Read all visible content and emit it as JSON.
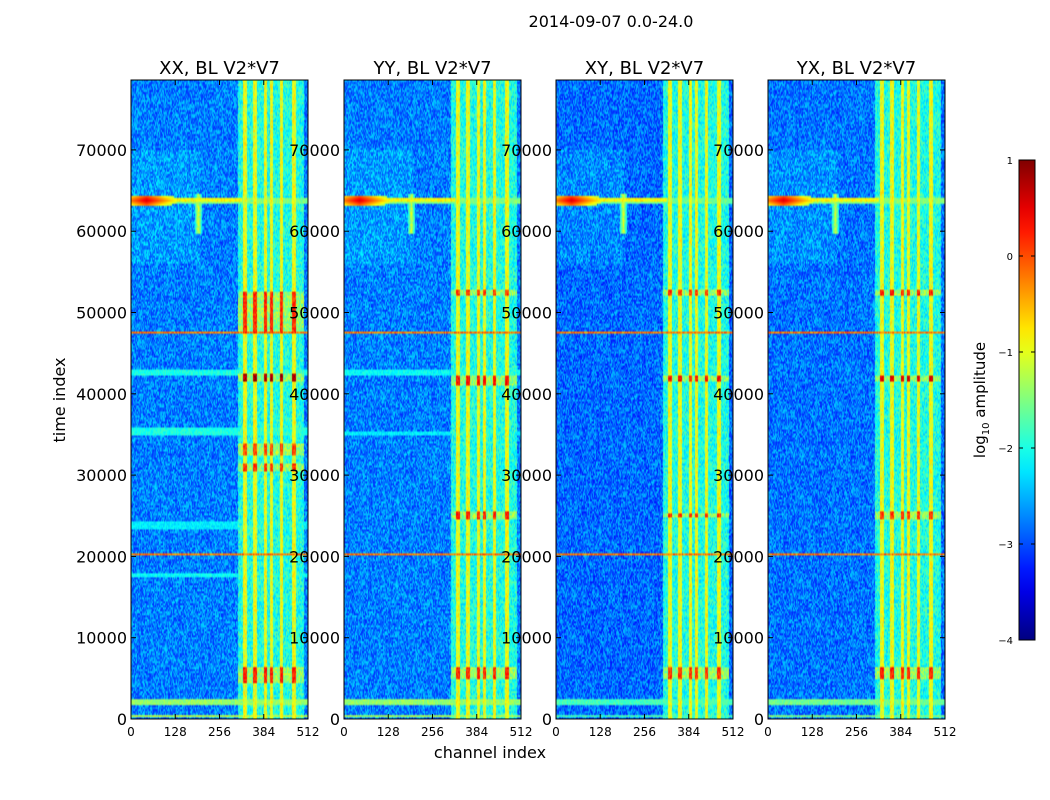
{
  "figure_title": "2014-09-07 0.0-24.0",
  "chart_data": {
    "type": "heatmap",
    "suptitle": "2014-09-07 0.0-24.0",
    "xlabel": "channel index",
    "ylabel": "time index",
    "xlim": [
      0,
      512
    ],
    "ylim": [
      0,
      78600
    ],
    "xticks": [
      0,
      128,
      256,
      384,
      512
    ],
    "yticks": [
      0,
      10000,
      20000,
      30000,
      40000,
      50000,
      60000,
      70000
    ],
    "colormap": "jet",
    "colorbar": {
      "label_prefix": "log",
      "label_sub": "10",
      "label_suffix": " amplitude",
      "range": [
        -4,
        1
      ],
      "ticks": [
        1,
        0,
        -1,
        -2,
        -3,
        -4
      ],
      "tick_labels": [
        "1",
        "0",
        "−1",
        "−2",
        "−3",
        "−4"
      ]
    },
    "panels": [
      {
        "title": "XX, BL V2*V7",
        "background_level": -2.75,
        "rfi_columns": [
          [
            324,
            335
          ],
          [
            354,
            365
          ],
          [
            385,
            394
          ],
          [
            403,
            410
          ],
          [
            430,
            440
          ],
          [
            467,
            476
          ]
        ],
        "hot_time_bands": [
          [
            41600,
            42400,
            0.8
          ],
          [
            4500,
            6500,
            0.2
          ],
          [
            30500,
            31500,
            0.1
          ],
          [
            32500,
            34000,
            0.0
          ],
          [
            47500,
            52500,
            0.15
          ]
        ],
        "broadband_time_bands": [
          [
            200,
            600,
            -1.2
          ],
          [
            1800,
            2400,
            -1.4
          ],
          [
            23300,
            24300,
            -2.2
          ],
          [
            34800,
            35800,
            -2.0
          ],
          [
            42300,
            42900,
            -2.0
          ],
          [
            63400,
            64000,
            -1.5
          ],
          [
            17500,
            18000,
            -2.1
          ]
        ]
      },
      {
        "title": "YY, BL V2*V7",
        "background_level": -2.75,
        "rfi_columns": [
          [
            324,
            335
          ],
          [
            354,
            365
          ],
          [
            385,
            394
          ],
          [
            403,
            410
          ],
          [
            430,
            440
          ],
          [
            467,
            476
          ]
        ],
        "hot_time_bands": [
          [
            41000,
            42300,
            0.3
          ],
          [
            24500,
            25500,
            0.2
          ],
          [
            5000,
            6500,
            0.2
          ],
          [
            52000,
            52800,
            0.1
          ]
        ],
        "broadband_time_bands": [
          [
            200,
            600,
            -1.3
          ],
          [
            1800,
            2400,
            -1.4
          ],
          [
            63400,
            64000,
            -1.5
          ],
          [
            42300,
            42900,
            -2.1
          ],
          [
            34800,
            35400,
            -2.2
          ]
        ]
      },
      {
        "title": "XY, BL V2*V7",
        "background_level": -2.85,
        "rfi_columns": [
          [
            324,
            335
          ],
          [
            354,
            365
          ],
          [
            385,
            394
          ],
          [
            403,
            410
          ],
          [
            430,
            440
          ],
          [
            467,
            476
          ]
        ],
        "hot_time_bands": [
          [
            41500,
            42300,
            0.3
          ],
          [
            24700,
            25400,
            0.1
          ],
          [
            5000,
            6500,
            0.1
          ],
          [
            52000,
            52800,
            0.1
          ]
        ],
        "broadband_time_bands": [
          [
            200,
            600,
            -1.8
          ],
          [
            1800,
            2400,
            -1.8
          ],
          [
            63400,
            64000,
            -1.6
          ]
        ]
      },
      {
        "title": "YX, BL V2*V7",
        "background_level": -2.8,
        "rfi_columns": [
          [
            324,
            335
          ],
          [
            354,
            365
          ],
          [
            385,
            394
          ],
          [
            403,
            410
          ],
          [
            430,
            440
          ],
          [
            467,
            476
          ]
        ],
        "hot_time_bands": [
          [
            41500,
            42300,
            0.5
          ],
          [
            24500,
            25500,
            0.1
          ],
          [
            5000,
            6500,
            0.2
          ],
          [
            52000,
            52800,
            0.2
          ]
        ],
        "broadband_time_bands": [
          [
            200,
            600,
            -1.5
          ],
          [
            1800,
            2400,
            -1.6
          ],
          [
            63400,
            64000,
            -1.5
          ]
        ]
      }
    ],
    "features": {
      "flare_time": 63800,
      "flare_channel": 45,
      "spike_channel": 195,
      "thin_line_times": [
        47500,
        20300
      ]
    }
  }
}
